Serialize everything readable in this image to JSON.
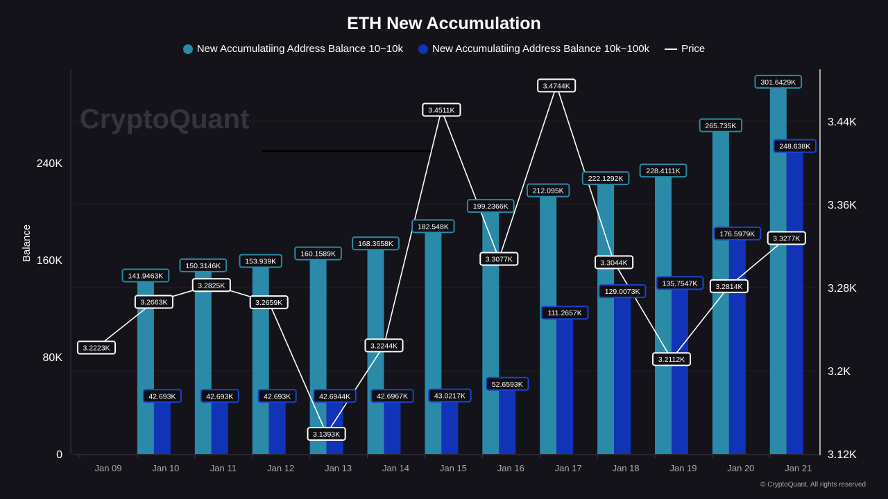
{
  "chart_data": {
    "type": "bar",
    "title": "ETH New Accumulation",
    "ylabel": "Balance",
    "categories": [
      "Jan 09",
      "Jan 10",
      "Jan 11",
      "Jan 12",
      "Jan 13",
      "Jan 14",
      "Jan 15",
      "Jan 16",
      "Jan 17",
      "Jan 18",
      "Jan 19",
      "Jan 20",
      "Jan 21"
    ],
    "series": [
      {
        "name": "New Accumulatiing Address Balance 10~10k",
        "type": "bar",
        "axis": "left",
        "color": "#2a8aa8",
        "values": [
          null,
          141946.3,
          150314.6,
          153939,
          160158.9,
          168365.8,
          182548,
          199236.6,
          212095,
          222129.2,
          228411.1,
          265735,
          301642.9
        ],
        "labels": [
          null,
          "141.9463K",
          "150.3146K",
          "153.939K",
          "160.1589K",
          "168.3658K",
          "182.548K",
          "199.2366K",
          "212.095K",
          "222.1292K",
          "228.4111K",
          "265.735K",
          "301.6429K"
        ]
      },
      {
        "name": "New Accumulatiing Address Balance 10k~100k",
        "type": "bar",
        "axis": "left",
        "color": "#1133b8",
        "values": [
          null,
          42693,
          42693,
          42693,
          42694.4,
          42696.7,
          43021.7,
          52659.3,
          111265.7,
          129007.3,
          135754.7,
          176597.9,
          248638
        ],
        "labels": [
          null,
          "42.693K",
          "42.693K",
          "42.693K",
          "42.6944K",
          "42.6967K",
          "43.0217K",
          "52.6593K",
          "111.2657K",
          "129.0073K",
          "135.7547K",
          "176.5979K",
          "248.638K"
        ]
      },
      {
        "name": "Price",
        "type": "line",
        "axis": "right",
        "color": "#ffffff",
        "values": [
          3222.3,
          3266.3,
          3282.5,
          3265.9,
          3139.3,
          3224.4,
          3451.1,
          3307.7,
          3474.4,
          3304.4,
          3211.2,
          3281.4,
          3327.7
        ],
        "labels": [
          "3.2223K",
          "3.2663K",
          "3.2825K",
          "3.2659K",
          "3.1393K",
          "3.2244K",
          "3.4511K",
          "3.3077K",
          "3.4744K",
          "3.3044K",
          "3.2112K",
          "3.2814K",
          "3.3277K"
        ]
      }
    ],
    "left_axis": {
      "ticks": [
        0,
        80000,
        160000,
        240000
      ],
      "tick_labels": [
        "0",
        "80K",
        "160K",
        "240K"
      ],
      "ylim": [
        0,
        317000
      ]
    },
    "right_axis": {
      "ticks": [
        3120,
        3200,
        3280,
        3360,
        3440
      ],
      "tick_labels": [
        "3.12K",
        "3.2K",
        "3.28K",
        "3.36K",
        "3.44K"
      ],
      "ylim": [
        3120,
        3490
      ]
    },
    "grid": true,
    "legend": "top"
  },
  "watermark": "CryptoQuant",
  "copyright": "© CryptoQuant. All rights reserved"
}
